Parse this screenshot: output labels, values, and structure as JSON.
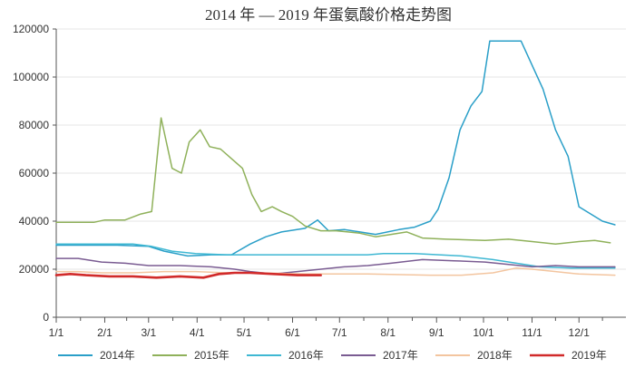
{
  "chart_data": {
    "type": "line",
    "title": "2014 年 — 2019 年蛋氨酸价格走势图",
    "xlabel": "",
    "ylabel": "",
    "x_tick_labels": [
      "1/1",
      "2/1",
      "3/1",
      "4/1",
      "5/1",
      "6/1",
      "7/1",
      "8/1",
      "9/1",
      "10/1",
      "11/1",
      "12/1"
    ],
    "x_ticks": [
      1,
      32,
      60,
      91,
      121,
      152,
      182,
      213,
      244,
      274,
      305,
      335
    ],
    "xlim": [
      1,
      365
    ],
    "ylim": [
      0,
      120000
    ],
    "y_ticks": [
      0,
      20000,
      40000,
      60000,
      80000,
      100000,
      120000
    ],
    "y_tick_labels": [
      "0",
      "20000",
      "40000",
      "60000",
      "80000",
      "100000",
      "120000"
    ],
    "grid": "horizontal",
    "legend_position": "bottom",
    "series": [
      {
        "name": "2014年",
        "color": "#2a9fc8",
        "points": [
          [
            1,
            30000
          ],
          [
            20,
            30000
          ],
          [
            40,
            30000
          ],
          [
            60,
            29500
          ],
          [
            70,
            27500
          ],
          [
            85,
            25500
          ],
          [
            100,
            26000
          ],
          [
            113,
            26000
          ],
          [
            125,
            30500
          ],
          [
            135,
            33500
          ],
          [
            145,
            35500
          ],
          [
            160,
            37000
          ],
          [
            168,
            40500
          ],
          [
            175,
            36000
          ],
          [
            185,
            36500
          ],
          [
            195,
            35500
          ],
          [
            205,
            34500
          ],
          [
            220,
            36500
          ],
          [
            230,
            37500
          ],
          [
            240,
            40000
          ],
          [
            245,
            45000
          ],
          [
            252,
            58000
          ],
          [
            259,
            78000
          ],
          [
            266,
            88000
          ],
          [
            273,
            94000
          ],
          [
            278,
            115000
          ],
          [
            298,
            115000
          ],
          [
            312,
            95000
          ],
          [
            320,
            78000
          ],
          [
            328,
            67000
          ],
          [
            335,
            46000
          ],
          [
            350,
            40000
          ],
          [
            358,
            38500
          ]
        ]
      },
      {
        "name": "2015年",
        "color": "#8fb15a",
        "points": [
          [
            1,
            39500
          ],
          [
            25,
            39500
          ],
          [
            32,
            40500
          ],
          [
            45,
            40500
          ],
          [
            55,
            43000
          ],
          [
            62,
            44000
          ],
          [
            68,
            83000
          ],
          [
            75,
            62000
          ],
          [
            81,
            60000
          ],
          [
            86,
            73000
          ],
          [
            93,
            78000
          ],
          [
            99,
            71000
          ],
          [
            106,
            70000
          ],
          [
            113,
            66000
          ],
          [
            120,
            62000
          ],
          [
            126,
            51000
          ],
          [
            132,
            44000
          ],
          [
            139,
            46000
          ],
          [
            145,
            44000
          ],
          [
            152,
            42000
          ],
          [
            160,
            38000
          ],
          [
            170,
            36000
          ],
          [
            180,
            36000
          ],
          [
            195,
            35000
          ],
          [
            205,
            33500
          ],
          [
            215,
            34500
          ],
          [
            225,
            35500
          ],
          [
            235,
            33000
          ],
          [
            250,
            32500
          ],
          [
            275,
            32000
          ],
          [
            290,
            32500
          ],
          [
            305,
            31500
          ],
          [
            320,
            30500
          ],
          [
            335,
            31500
          ],
          [
            345,
            32000
          ],
          [
            355,
            31000
          ]
        ]
      },
      {
        "name": "2016年",
        "color": "#3fb8d3",
        "points": [
          [
            1,
            30500
          ],
          [
            50,
            30500
          ],
          [
            62,
            29500
          ],
          [
            75,
            27500
          ],
          [
            90,
            26500
          ],
          [
            110,
            26000
          ],
          [
            150,
            26000
          ],
          [
            200,
            26000
          ],
          [
            210,
            26500
          ],
          [
            230,
            26500
          ],
          [
            260,
            25500
          ],
          [
            280,
            24000
          ],
          [
            295,
            22500
          ],
          [
            310,
            21000
          ],
          [
            330,
            20500
          ],
          [
            345,
            20500
          ],
          [
            358,
            20500
          ]
        ]
      },
      {
        "name": "2017年",
        "color": "#7a5c92",
        "points": [
          [
            1,
            24500
          ],
          [
            15,
            24500
          ],
          [
            30,
            23000
          ],
          [
            45,
            22500
          ],
          [
            60,
            21500
          ],
          [
            80,
            21500
          ],
          [
            100,
            21000
          ],
          [
            115,
            20000
          ],
          [
            125,
            19000
          ],
          [
            140,
            18000
          ],
          [
            155,
            19000
          ],
          [
            170,
            20000
          ],
          [
            185,
            21000
          ],
          [
            200,
            21500
          ],
          [
            215,
            22500
          ],
          [
            235,
            24000
          ],
          [
            255,
            23500
          ],
          [
            275,
            23000
          ],
          [
            290,
            22000
          ],
          [
            305,
            21000
          ],
          [
            320,
            21500
          ],
          [
            335,
            21000
          ],
          [
            358,
            21000
          ]
        ]
      },
      {
        "name": "2018年",
        "color": "#f3c59f",
        "points": [
          [
            1,
            19000
          ],
          [
            15,
            19000
          ],
          [
            30,
            18500
          ],
          [
            50,
            18500
          ],
          [
            70,
            19000
          ],
          [
            90,
            19000
          ],
          [
            110,
            18500
          ],
          [
            130,
            18500
          ],
          [
            160,
            18000
          ],
          [
            200,
            18000
          ],
          [
            240,
            17500
          ],
          [
            260,
            17500
          ],
          [
            280,
            18500
          ],
          [
            295,
            20500
          ],
          [
            305,
            20000
          ],
          [
            320,
            19000
          ],
          [
            335,
            18000
          ],
          [
            358,
            17500
          ]
        ]
      },
      {
        "name": "2019年",
        "color": "#d12a2a",
        "points": [
          [
            1,
            17500
          ],
          [
            10,
            18000
          ],
          [
            20,
            17500
          ],
          [
            35,
            17000
          ],
          [
            50,
            17000
          ],
          [
            65,
            16500
          ],
          [
            80,
            17000
          ],
          [
            95,
            16500
          ],
          [
            105,
            18000
          ],
          [
            115,
            18500
          ],
          [
            125,
            18500
          ],
          [
            140,
            18000
          ],
          [
            155,
            17500
          ],
          [
            170,
            17500
          ]
        ]
      }
    ]
  }
}
